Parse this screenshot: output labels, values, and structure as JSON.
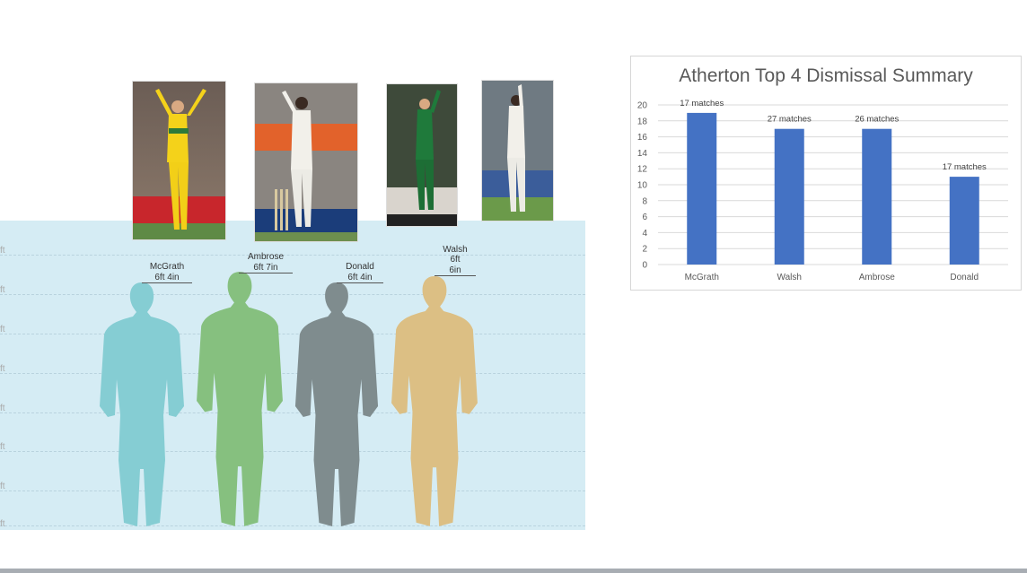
{
  "height_chart": {
    "unit_labels": [
      "ft",
      "ft",
      "ft",
      "ft",
      "ft",
      "ft",
      "ft",
      "ft"
    ],
    "figures": [
      {
        "name": "McGrath",
        "height": "6ft 4in",
        "color": "#85cdd3"
      },
      {
        "name": "Ambrose",
        "height": "6ft 7in",
        "color": "#86c07f"
      },
      {
        "name": "Donald",
        "height": "6ft 4in",
        "color": "#7f8c8e"
      },
      {
        "name": "Walsh",
        "height_line1": "6ft",
        "height_line2": "6in",
        "color": "#dcbf84"
      }
    ]
  },
  "chart_data": {
    "type": "bar",
    "title": "Atherton Top 4 Dismissal Summary",
    "categories": [
      "McGrath",
      "Walsh",
      "Ambrose",
      "Donald"
    ],
    "values": [
      19,
      17,
      17,
      11
    ],
    "data_labels": [
      "17 matches",
      "27 matches",
      "26 matches",
      "17 matches"
    ],
    "yticks": [
      "0",
      "2",
      "4",
      "6",
      "8",
      "10",
      "12",
      "14",
      "16",
      "18",
      "20"
    ],
    "ylim": [
      0,
      20
    ],
    "bar_color": "#4472c4",
    "grid": true
  }
}
